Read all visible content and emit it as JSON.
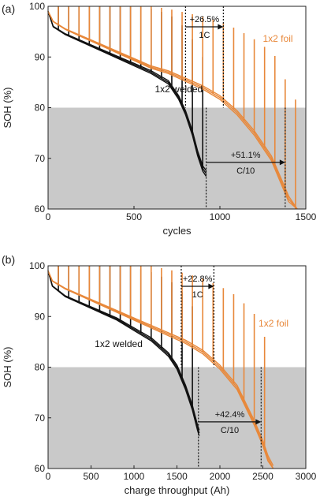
{
  "chart_data": [
    {
      "type": "line",
      "panel_label": "(a)",
      "xlabel": "cycles",
      "ylabel": "SOH (%)",
      "xlim": [
        0,
        1500
      ],
      "ylim": [
        60,
        100
      ],
      "xticks": [
        0,
        500,
        1000,
        1500
      ],
      "yticks": [
        60,
        70,
        80,
        90,
        100
      ],
      "shaded_region": {
        "y_from": 60,
        "y_to": 80,
        "color": "#c9c9c9"
      },
      "colors": {
        "welded": "#111111",
        "foil": "#e8883a"
      },
      "series": [
        {
          "name": "1x2 welded",
          "color": "#111111",
          "x": [
            0,
            30,
            100,
            200,
            300,
            400,
            500,
            600,
            700,
            760,
            800,
            840,
            870,
            900,
            920
          ],
          "y": [
            99,
            96,
            94.5,
            93,
            91.5,
            90,
            88.5,
            87,
            85,
            82,
            79,
            75,
            71,
            68,
            67
          ]
        },
        {
          "name": "1x2 foil",
          "color": "#e8883a",
          "x": [
            0,
            30,
            100,
            200,
            300,
            400,
            500,
            600,
            700,
            800,
            900,
            1000,
            1100,
            1200,
            1300,
            1350,
            1400,
            1450
          ],
          "y": [
            99,
            97,
            95.5,
            94,
            92.5,
            91,
            89.5,
            88,
            87,
            85.5,
            84,
            82,
            79,
            75,
            70,
            66,
            62,
            59
          ]
        }
      ],
      "annotations": {
        "top_pct": "+26.5%",
        "top_rate": "1C",
        "bottom_pct": "+51.1%",
        "bottom_rate": "C/10",
        "label_welded": "1x2 welded",
        "label_foil": "1x2 foil",
        "top_arrow_x": [
          800,
          1020
        ],
        "bottom_arrow_x": [
          920,
          1380
        ]
      }
    },
    {
      "type": "line",
      "panel_label": "(b)",
      "xlabel": "charge throughput (Ah)",
      "ylabel": "SOH (%)",
      "xlim": [
        0,
        3000
      ],
      "ylim": [
        60,
        100
      ],
      "xticks": [
        0,
        500,
        1000,
        1500,
        2000,
        2500,
        3000
      ],
      "yticks": [
        60,
        70,
        80,
        90,
        100
      ],
      "shaded_region": {
        "y_from": 60,
        "y_to": 80,
        "color": "#c9c9c9"
      },
      "colors": {
        "welded": "#111111",
        "foil": "#e8883a"
      },
      "series": [
        {
          "name": "1x2 welded",
          "color": "#111111",
          "x": [
            0,
            50,
            200,
            400,
            600,
            800,
            1000,
            1200,
            1400,
            1500,
            1600,
            1680,
            1740,
            1760
          ],
          "y": [
            99,
            96,
            94,
            92.5,
            91,
            89.5,
            87.5,
            85.5,
            82.5,
            80,
            76,
            72,
            68,
            67
          ]
        },
        {
          "name": "1x2 foil",
          "color": "#e8883a",
          "x": [
            0,
            50,
            200,
            400,
            600,
            800,
            1000,
            1200,
            1400,
            1600,
            1800,
            2000,
            2200,
            2400,
            2500,
            2560,
            2620
          ],
          "y": [
            99,
            97,
            95.5,
            94,
            92.5,
            91,
            89.5,
            88,
            86.5,
            85,
            83,
            80,
            76,
            69,
            65,
            62,
            60
          ]
        }
      ],
      "annotations": {
        "top_pct": "+22.8%",
        "top_rate": "1C",
        "bottom_pct": "+42.4%",
        "bottom_rate": "C/10",
        "label_welded": "1x2 welded",
        "label_foil": "1x2 foil",
        "top_arrow_x": [
          1550,
          1930
        ],
        "bottom_arrow_x": [
          1750,
          2480
        ]
      }
    }
  ]
}
